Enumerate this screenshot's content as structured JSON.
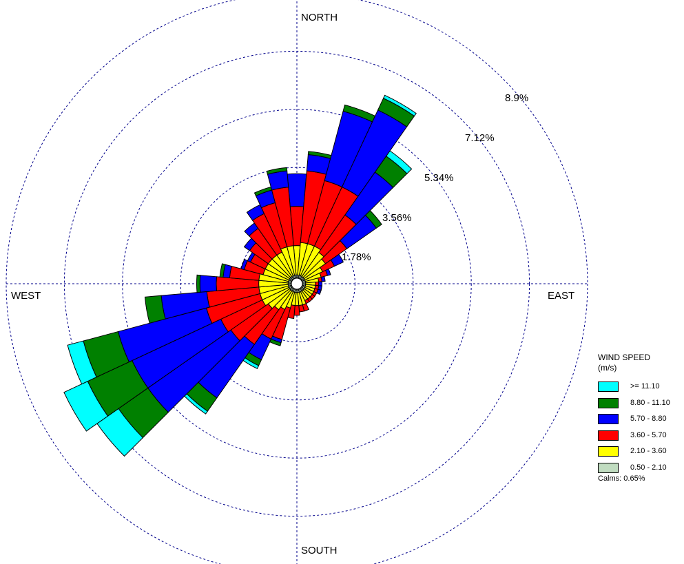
{
  "chart_data": {
    "type": "polar-stacked-bar",
    "title": "",
    "direction_labels": {
      "north": "NORTH",
      "south": "SOUTH",
      "east": "EAST",
      "west": "WEST"
    },
    "ring_labels": [
      "1.78%",
      "3.56%",
      "5.34%",
      "7.12%",
      "8.9%"
    ],
    "ring_values": [
      1.78,
      3.56,
      5.34,
      7.12,
      8.9
    ],
    "sector_count": 36,
    "sector_width_deg": 10,
    "legend": {
      "title_line1": "WIND SPEED",
      "title_line2": "(m/s)",
      "bins": [
        {
          "label": ">= 11.10",
          "color": "#00ffff"
        },
        {
          "label": "8.80 - 11.10",
          "color": "#008000"
        },
        {
          "label": "5.70 - 8.80",
          "color": "#0000ff"
        },
        {
          "label": "3.60 - 5.70",
          "color": "#ff0000"
        },
        {
          "label": "2.10 - 3.60",
          "color": "#ffff00"
        },
        {
          "label": "0.50 - 2.10",
          "color": "#c0dcc0"
        }
      ],
      "calms_text": "Calms: 0.65%"
    },
    "series_order": [
      "0.50 - 2.10",
      "2.10 - 3.60",
      "3.60 - 5.70",
      "5.70 - 8.80",
      "8.80 - 11.10",
      ">= 11.10"
    ],
    "sectors": [
      {
        "dir": 0,
        "cum": [
          0.1,
          1.0,
          2.2,
          3.2,
          3.2,
          3.2
        ]
      },
      {
        "dir": 10,
        "cum": [
          0.1,
          1.1,
          3.3,
          3.8,
          3.9,
          3.9
        ]
      },
      {
        "dir": 20,
        "cum": [
          0.1,
          1.1,
          3.1,
          5.3,
          5.5,
          5.5
        ]
      },
      {
        "dir": 30,
        "cum": [
          0.1,
          1.1,
          3.1,
          5.7,
          6.1,
          6.2
        ]
      },
      {
        "dir": 40,
        "cum": [
          0.1,
          1.0,
          2.4,
          4.0,
          4.6,
          4.8
        ]
      },
      {
        "dir": 50,
        "cum": [
          0.1,
          0.9,
          1.7,
          2.8,
          3.0,
          3.0
        ]
      },
      {
        "dir": 60,
        "cum": [
          0.1,
          0.7,
          1.1,
          1.4,
          1.4,
          1.4
        ]
      },
      {
        "dir": 70,
        "cum": [
          0.1,
          0.6,
          0.8,
          0.9,
          0.9,
          0.9
        ]
      },
      {
        "dir": 80,
        "cum": [
          0.1,
          0.5,
          0.6,
          0.7,
          0.7,
          0.7
        ]
      },
      {
        "dir": 90,
        "cum": [
          0.1,
          0.4,
          0.5,
          0.6,
          0.6,
          0.6
        ]
      },
      {
        "dir": 100,
        "cum": [
          0.1,
          0.4,
          0.5,
          0.6,
          0.6,
          0.6
        ]
      },
      {
        "dir": 110,
        "cum": [
          0.1,
          0.4,
          0.5,
          0.6,
          0.6,
          0.6
        ]
      },
      {
        "dir": 120,
        "cum": [
          0.1,
          0.4,
          0.5,
          0.5,
          0.5,
          0.5
        ]
      },
      {
        "dir": 130,
        "cum": [
          0.1,
          0.4,
          0.5,
          0.5,
          0.5,
          0.5
        ]
      },
      {
        "dir": 140,
        "cum": [
          0.1,
          0.4,
          0.5,
          0.5,
          0.5,
          0.5
        ]
      },
      {
        "dir": 150,
        "cum": [
          0.1,
          0.4,
          0.5,
          0.5,
          0.5,
          0.5
        ]
      },
      {
        "dir": 160,
        "cum": [
          0.1,
          0.5,
          0.7,
          0.7,
          0.7,
          0.7
        ]
      },
      {
        "dir": 170,
        "cum": [
          0.1,
          0.5,
          0.7,
          0.7,
          0.7,
          0.7
        ]
      },
      {
        "dir": 180,
        "cum": [
          0.1,
          0.5,
          0.8,
          0.8,
          0.8,
          0.8
        ]
      },
      {
        "dir": 190,
        "cum": [
          0.1,
          0.5,
          0.9,
          0.9,
          0.9,
          0.9
        ]
      },
      {
        "dir": 200,
        "cum": [
          0.1,
          0.6,
          1.6,
          1.7,
          1.8,
          1.8
        ]
      },
      {
        "dir": 210,
        "cum": [
          0.1,
          0.7,
          1.7,
          2.4,
          2.6,
          2.7
        ]
      },
      {
        "dir": 220,
        "cum": [
          0.1,
          0.8,
          2.1,
          4.1,
          4.6,
          4.7
        ]
      },
      {
        "dir": 230,
        "cum": [
          0.1,
          0.9,
          2.3,
          5.4,
          6.5,
          7.3
        ]
      },
      {
        "dir": 240,
        "cum": [
          0.1,
          1.0,
          2.4,
          5.4,
          6.9,
          7.7
        ]
      },
      {
        "dir": 250,
        "cum": [
          0.1,
          1.0,
          2.7,
          5.5,
          6.6,
          7.1
        ]
      },
      {
        "dir": 260,
        "cum": [
          0.1,
          1.0,
          2.6,
          4.0,
          4.5,
          4.5
        ]
      },
      {
        "dir": 270,
        "cum": [
          0.1,
          1.0,
          2.3,
          2.8,
          2.9,
          2.9
        ]
      },
      {
        "dir": 280,
        "cum": [
          0.1,
          1.0,
          1.9,
          2.1,
          2.2,
          2.2
        ]
      },
      {
        "dir": 290,
        "cum": [
          0.1,
          0.9,
          1.5,
          1.6,
          1.6,
          1.6
        ]
      },
      {
        "dir": 300,
        "cum": [
          0.1,
          0.9,
          1.4,
          1.5,
          1.5,
          1.5
        ]
      },
      {
        "dir": 310,
        "cum": [
          0.1,
          0.9,
          1.6,
          1.8,
          1.8,
          1.8
        ]
      },
      {
        "dir": 320,
        "cum": [
          0.1,
          0.9,
          1.9,
          2.1,
          2.1,
          2.1
        ]
      },
      {
        "dir": 330,
        "cum": [
          0.1,
          0.9,
          2.2,
          2.5,
          2.5,
          2.5
        ]
      },
      {
        "dir": 340,
        "cum": [
          0.1,
          1.0,
          2.4,
          2.8,
          2.9,
          2.9
        ]
      },
      {
        "dir": 350,
        "cum": [
          0.1,
          1.0,
          2.8,
          3.3,
          3.4,
          3.4
        ]
      }
    ]
  }
}
